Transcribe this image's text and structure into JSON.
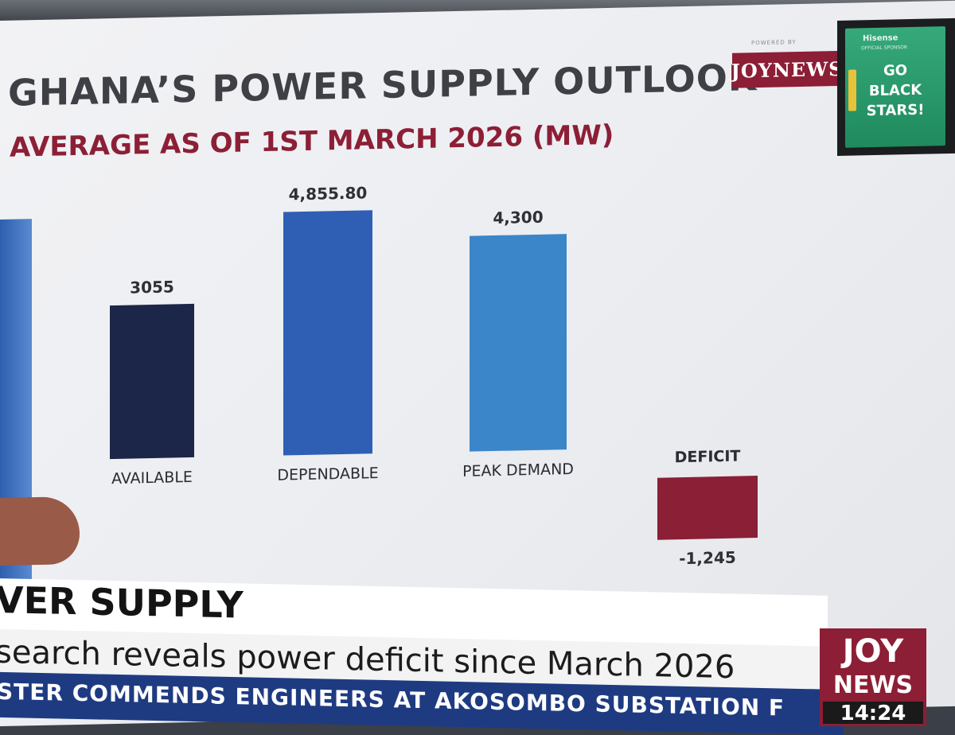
{
  "broadcast": {
    "powered_by": "POWERED BY",
    "brand": "JOYNEWS",
    "sponsor": {
      "brand": "Hisense",
      "tag": "OFFICIAL SPONSOR",
      "message_lines": [
        "GO",
        "BLACK",
        "STARS!"
      ]
    }
  },
  "chart_data": {
    "type": "bar",
    "title": "GHANA’S POWER SUPPLY OUTLOOK",
    "subtitle": "AVERAGE AS OF 1ST MARCH 2026 (MW)",
    "categories": [
      "AVAILABLE",
      "DEPENDABLE",
      "PEAK DEMAND",
      "DEFICIT"
    ],
    "values": [
      3055,
      4855.8,
      4300,
      -1245
    ],
    "value_labels": [
      "3055",
      "4,855.80",
      "4,300",
      "-1,245"
    ],
    "colors": [
      "#1c2648",
      "#2e5fb5",
      "#3a86c8",
      "#8a1f35"
    ],
    "ylim": [
      -1245,
      4855.8
    ],
    "grid": false,
    "legend": "none"
  },
  "lower_third": {
    "headline": "VER SUPPLY",
    "ticker": "search reveals power deficit since March 2026",
    "crawl": "STER COMMENDS ENGINEERS AT AKOSOMBO SUBSTATION F"
  },
  "logo": {
    "joy": "JOY",
    "news": "NEWS",
    "time": "14:24"
  }
}
